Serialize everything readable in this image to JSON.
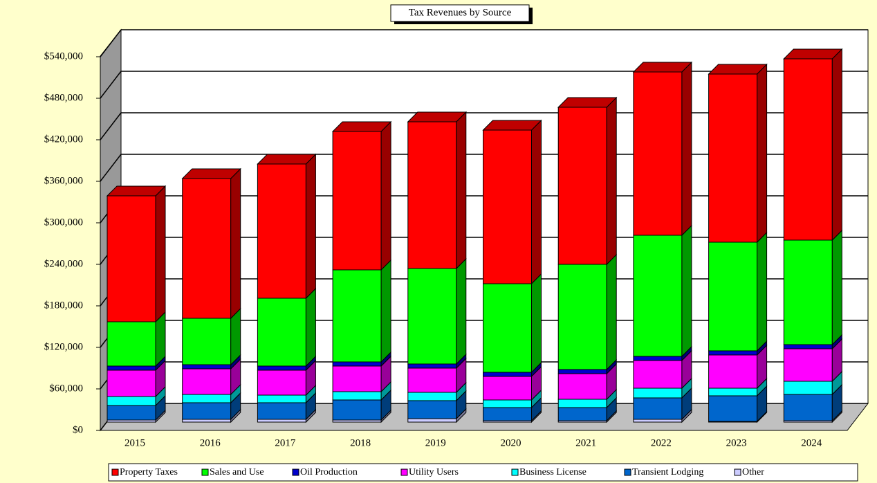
{
  "chart_data": {
    "type": "bar",
    "stacked": true,
    "title": "Tax Revenues by Source",
    "categories": [
      "2015",
      "2016",
      "2017",
      "2018",
      "2019",
      "2020",
      "2021",
      "2022",
      "2023",
      "2024"
    ],
    "series": [
      {
        "name": "Other",
        "color": "#ccccff",
        "values": [
          3000,
          4000,
          4000,
          3000,
          5000,
          2000,
          2000,
          4000,
          1000,
          2000
        ]
      },
      {
        "name": "Transient Lodging",
        "color": "#0066cc",
        "values": [
          21000,
          24000,
          24000,
          29000,
          26000,
          19000,
          19000,
          31000,
          37000,
          38000
        ]
      },
      {
        "name": "Business License",
        "color": "#00ffff",
        "values": [
          13000,
          12000,
          11000,
          12000,
          12000,
          11000,
          12000,
          14000,
          11000,
          19000
        ]
      },
      {
        "name": "Utility Users",
        "color": "#ff00ff",
        "values": [
          38000,
          37000,
          36000,
          37000,
          35000,
          34000,
          37000,
          40000,
          48000,
          47000
        ]
      },
      {
        "name": "Oil Production",
        "color": "#0000cc",
        "values": [
          6000,
          6000,
          6000,
          6000,
          6000,
          6000,
          6000,
          6000,
          6000,
          6000
        ]
      },
      {
        "name": "Sales and Use",
        "color": "#00ff00",
        "values": [
          64000,
          67000,
          98000,
          133000,
          138000,
          128000,
          152000,
          175000,
          157000,
          151000
        ]
      },
      {
        "name": "Property Taxes",
        "color": "#ff0000",
        "values": [
          182000,
          202000,
          194000,
          200000,
          212000,
          222000,
          227000,
          236000,
          243000,
          262000
        ]
      }
    ],
    "legend_order": [
      6,
      5,
      4,
      3,
      2,
      1,
      0
    ],
    "ylim": [
      0,
      540000
    ],
    "yticks": [
      {
        "value": 0,
        "label": "$0"
      },
      {
        "value": 60000,
        "label": "$60,000"
      },
      {
        "value": 120000,
        "label": "$120,000"
      },
      {
        "value": 180000,
        "label": "$180,000"
      },
      {
        "value": 240000,
        "label": "$240,000"
      },
      {
        "value": 300000,
        "label": "$300,000"
      },
      {
        "value": 360000,
        "label": "$360,000"
      },
      {
        "value": 420000,
        "label": "$420,000"
      },
      {
        "value": 480000,
        "label": "$480,000"
      },
      {
        "value": 540000,
        "label": "$540,000"
      }
    ],
    "grid": true,
    "legend": "bottom"
  }
}
